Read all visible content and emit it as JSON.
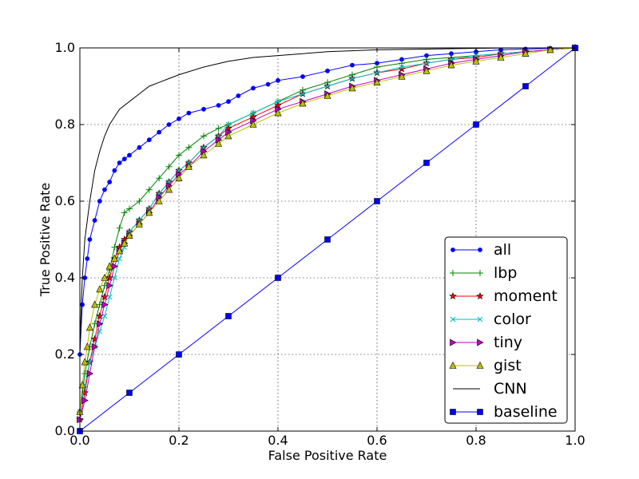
{
  "chart_data": {
    "type": "line",
    "title": "",
    "xlabel": "False Positive Rate",
    "ylabel": "True Positive Rate",
    "xlim": [
      0,
      1
    ],
    "ylim": [
      0,
      1
    ],
    "xticks": [
      "0.0",
      "0.2",
      "0.4",
      "0.6",
      "0.8",
      "1.0"
    ],
    "yticks": [
      "0.0",
      "0.2",
      "0.4",
      "0.6",
      "0.8",
      "1.0"
    ],
    "grid": true,
    "legend_position": "lower-right",
    "series": [
      {
        "name": "all",
        "color": "#0000ff",
        "marker": "dot",
        "x": [
          0,
          0.005,
          0.01,
          0.015,
          0.02,
          0.03,
          0.04,
          0.05,
          0.06,
          0.07,
          0.08,
          0.09,
          0.1,
          0.12,
          0.14,
          0.16,
          0.18,
          0.2,
          0.22,
          0.25,
          0.28,
          0.3,
          0.32,
          0.35,
          0.38,
          0.4,
          0.45,
          0.5,
          0.55,
          0.6,
          0.65,
          0.7,
          0.75,
          0.8,
          0.85,
          0.9,
          0.95,
          1.0
        ],
        "y": [
          0.2,
          0.33,
          0.4,
          0.45,
          0.5,
          0.55,
          0.6,
          0.63,
          0.65,
          0.68,
          0.7,
          0.71,
          0.72,
          0.74,
          0.76,
          0.78,
          0.8,
          0.815,
          0.83,
          0.84,
          0.85,
          0.86,
          0.875,
          0.895,
          0.905,
          0.915,
          0.925,
          0.94,
          0.955,
          0.96,
          0.97,
          0.98,
          0.985,
          0.99,
          0.995,
          0.997,
          0.999,
          1.0
        ]
      },
      {
        "name": "lbp",
        "color": "#008000",
        "marker": "plus",
        "x": [
          0,
          0.01,
          0.02,
          0.03,
          0.04,
          0.05,
          0.06,
          0.07,
          0.08,
          0.09,
          0.1,
          0.12,
          0.14,
          0.16,
          0.18,
          0.2,
          0.22,
          0.25,
          0.28,
          0.3,
          0.35,
          0.4,
          0.45,
          0.5,
          0.55,
          0.6,
          0.65,
          0.7,
          0.75,
          0.8,
          0.85,
          0.9,
          0.95,
          1.0
        ],
        "y": [
          0.05,
          0.15,
          0.22,
          0.28,
          0.33,
          0.38,
          0.42,
          0.48,
          0.53,
          0.57,
          0.58,
          0.6,
          0.63,
          0.66,
          0.69,
          0.72,
          0.74,
          0.77,
          0.79,
          0.8,
          0.83,
          0.86,
          0.89,
          0.91,
          0.93,
          0.95,
          0.96,
          0.97,
          0.975,
          0.98,
          0.985,
          0.99,
          0.995,
          1.0
        ]
      },
      {
        "name": "moment",
        "color": "#ff0000",
        "marker": "star",
        "x": [
          0,
          0.01,
          0.02,
          0.03,
          0.04,
          0.05,
          0.06,
          0.07,
          0.08,
          0.09,
          0.1,
          0.12,
          0.14,
          0.16,
          0.18,
          0.2,
          0.22,
          0.25,
          0.28,
          0.3,
          0.35,
          0.4,
          0.45,
          0.5,
          0.55,
          0.6,
          0.65,
          0.7,
          0.75,
          0.8,
          0.85,
          0.9,
          0.95,
          1.0
        ],
        "y": [
          0.03,
          0.1,
          0.18,
          0.24,
          0.3,
          0.35,
          0.4,
          0.45,
          0.48,
          0.5,
          0.52,
          0.55,
          0.58,
          0.62,
          0.65,
          0.68,
          0.7,
          0.74,
          0.77,
          0.79,
          0.82,
          0.85,
          0.88,
          0.9,
          0.92,
          0.935,
          0.945,
          0.96,
          0.97,
          0.975,
          0.985,
          0.99,
          0.995,
          1.0
        ]
      },
      {
        "name": "color",
        "color": "#00bfbf",
        "marker": "x",
        "x": [
          0,
          0.01,
          0.02,
          0.03,
          0.04,
          0.05,
          0.06,
          0.07,
          0.08,
          0.09,
          0.1,
          0.12,
          0.14,
          0.16,
          0.18,
          0.2,
          0.22,
          0.25,
          0.28,
          0.3,
          0.35,
          0.4,
          0.45,
          0.5,
          0.55,
          0.6,
          0.65,
          0.7,
          0.75,
          0.8,
          0.85,
          0.9,
          0.95,
          1.0
        ],
        "y": [
          0.05,
          0.12,
          0.18,
          0.22,
          0.26,
          0.3,
          0.35,
          0.4,
          0.45,
          0.48,
          0.52,
          0.55,
          0.58,
          0.62,
          0.65,
          0.68,
          0.7,
          0.74,
          0.77,
          0.8,
          0.83,
          0.86,
          0.88,
          0.9,
          0.92,
          0.935,
          0.95,
          0.96,
          0.97,
          0.98,
          0.985,
          0.99,
          0.995,
          1.0
        ]
      },
      {
        "name": "tiny",
        "color": "#bf00bf",
        "marker": "triangle-right",
        "x": [
          0,
          0.01,
          0.02,
          0.03,
          0.04,
          0.05,
          0.06,
          0.07,
          0.08,
          0.09,
          0.1,
          0.12,
          0.14,
          0.16,
          0.18,
          0.2,
          0.22,
          0.25,
          0.28,
          0.3,
          0.35,
          0.4,
          0.45,
          0.5,
          0.55,
          0.6,
          0.65,
          0.7,
          0.75,
          0.8,
          0.85,
          0.9,
          0.95,
          1.0
        ],
        "y": [
          0.03,
          0.08,
          0.15,
          0.22,
          0.28,
          0.33,
          0.38,
          0.43,
          0.47,
          0.49,
          0.51,
          0.54,
          0.57,
          0.61,
          0.64,
          0.67,
          0.69,
          0.73,
          0.76,
          0.78,
          0.81,
          0.84,
          0.86,
          0.88,
          0.9,
          0.915,
          0.93,
          0.945,
          0.96,
          0.97,
          0.98,
          0.99,
          0.995,
          1.0
        ]
      },
      {
        "name": "gist",
        "color": "#bfbf00",
        "marker": "triangle-up",
        "x": [
          0,
          0.005,
          0.01,
          0.015,
          0.02,
          0.03,
          0.04,
          0.05,
          0.06,
          0.07,
          0.08,
          0.09,
          0.1,
          0.12,
          0.14,
          0.16,
          0.18,
          0.2,
          0.22,
          0.25,
          0.28,
          0.3,
          0.35,
          0.4,
          0.45,
          0.5,
          0.55,
          0.6,
          0.65,
          0.7,
          0.75,
          0.8,
          0.85,
          0.9,
          0.95,
          1.0
        ],
        "y": [
          0.05,
          0.12,
          0.18,
          0.22,
          0.27,
          0.33,
          0.37,
          0.4,
          0.43,
          0.45,
          0.47,
          0.49,
          0.51,
          0.54,
          0.57,
          0.6,
          0.63,
          0.66,
          0.69,
          0.72,
          0.75,
          0.77,
          0.8,
          0.83,
          0.855,
          0.875,
          0.895,
          0.91,
          0.925,
          0.94,
          0.955,
          0.965,
          0.975,
          0.985,
          0.995,
          1.0
        ]
      },
      {
        "name": "CNN",
        "color": "#000000",
        "marker": "none",
        "x": [
          0,
          0.002,
          0.005,
          0.01,
          0.015,
          0.02,
          0.025,
          0.03,
          0.04,
          0.05,
          0.06,
          0.07,
          0.08,
          0.1,
          0.12,
          0.14,
          0.16,
          0.18,
          0.2,
          0.25,
          0.3,
          0.35,
          0.4,
          0.45,
          0.5,
          0.6,
          0.7,
          0.8,
          0.9,
          1.0
        ],
        "y": [
          0.2,
          0.3,
          0.4,
          0.5,
          0.55,
          0.6,
          0.64,
          0.68,
          0.73,
          0.77,
          0.8,
          0.82,
          0.84,
          0.86,
          0.88,
          0.9,
          0.91,
          0.92,
          0.93,
          0.95,
          0.965,
          0.975,
          0.98,
          0.985,
          0.99,
          0.995,
          0.997,
          0.999,
          1.0,
          1.0
        ]
      },
      {
        "name": "baseline",
        "color": "#0000ff",
        "marker": "square",
        "x": [
          0,
          0.1,
          0.2,
          0.3,
          0.4,
          0.5,
          0.6,
          0.7,
          0.8,
          0.9,
          1.0
        ],
        "y": [
          0,
          0.1,
          0.2,
          0.3,
          0.4,
          0.5,
          0.6,
          0.7,
          0.8,
          0.9,
          1.0
        ]
      }
    ]
  }
}
